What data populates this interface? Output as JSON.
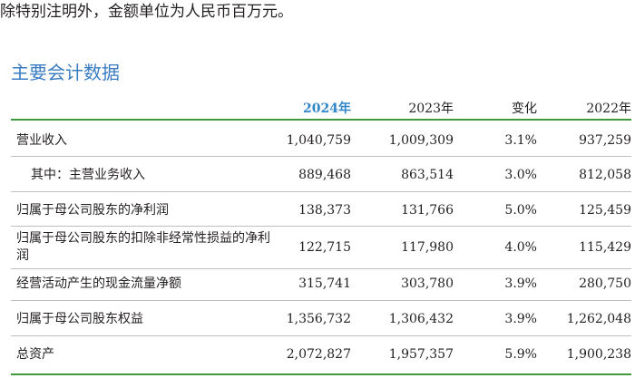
{
  "note": "除特别注明外，金额单位为人民币百万元。",
  "section_title": "主要会计数据",
  "columns": [
    "2024年",
    "2023年",
    "变化",
    "2022年"
  ],
  "rows": [
    {
      "label": "营业收入",
      "v2024": "1,040,759",
      "v2023": "1,009,309",
      "change": "3.1%",
      "v2022": "937,259"
    },
    {
      "label": "其中：主营业务收入",
      "v2024": "889,468",
      "v2023": "863,514",
      "change": "3.0%",
      "v2022": "812,058"
    },
    {
      "label": "归属于母公司股东的净利润",
      "v2024": "138,373",
      "v2023": "131,766",
      "change": "5.0%",
      "v2022": "125,459"
    },
    {
      "label": "归属于母公司股东的扣除非经常性损益的净利润",
      "v2024": "122,715",
      "v2023": "117,980",
      "change": "4.0%",
      "v2022": "115,429"
    },
    {
      "label": "经营活动产生的现金流量净额",
      "v2024": "315,741",
      "v2023": "303,780",
      "change": "3.9%",
      "v2022": "280,750"
    },
    {
      "label": "归属于母公司股东权益",
      "v2024": "1,356,732",
      "v2023": "1,306,432",
      "change": "3.9%",
      "v2022": "1,262,048"
    },
    {
      "label": "总资产",
      "v2024": "2,072,827",
      "v2023": "1,957,357",
      "change": "5.9%",
      "v2022": "1,900,238"
    }
  ]
}
